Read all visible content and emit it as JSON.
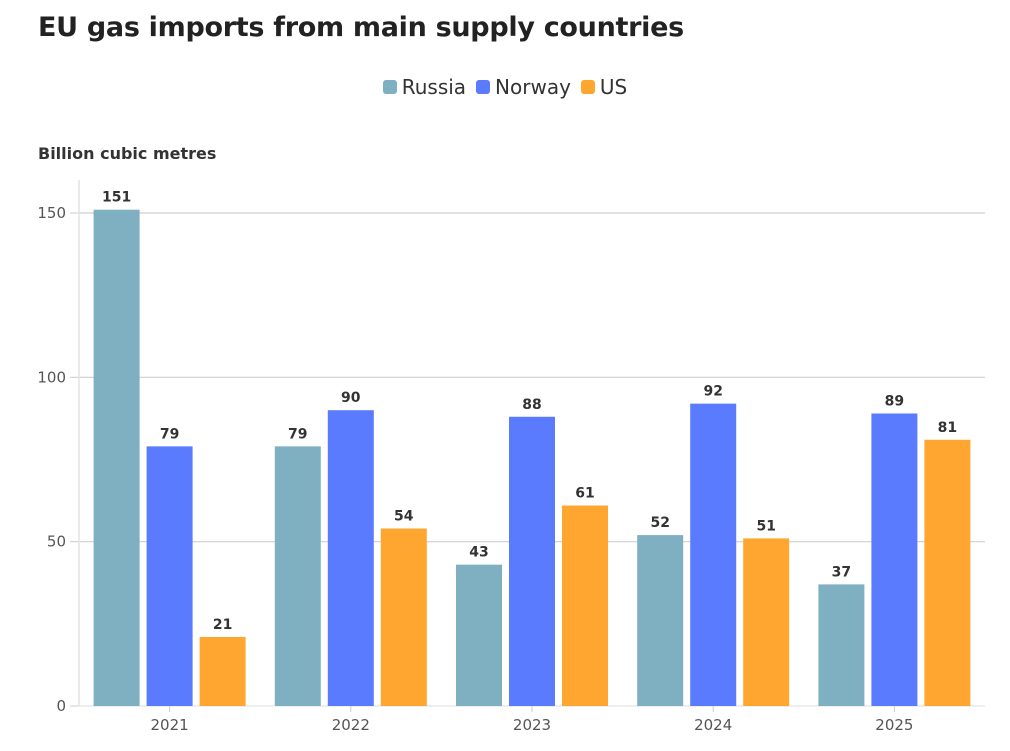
{
  "chart_data": {
    "type": "bar",
    "title": "EU gas imports from main supply countries",
    "ylabel": "Billion cubic metres",
    "xlabel": "",
    "categories": [
      "2021",
      "2022",
      "2023",
      "2024",
      "2025"
    ],
    "series": [
      {
        "name": "Russia",
        "color": "#7fb0c1",
        "values": [
          151,
          79,
          43,
          52,
          37
        ]
      },
      {
        "name": "Norway",
        "color": "#5b7bff",
        "values": [
          79,
          90,
          88,
          92,
          89
        ]
      },
      {
        "name": "US",
        "color": "#ffa630",
        "values": [
          21,
          54,
          61,
          51,
          81
        ]
      }
    ],
    "yticks": [
      0,
      50,
      100,
      150
    ],
    "ylim": [
      0,
      160
    ],
    "grid": true,
    "legend_position": "top-center"
  }
}
